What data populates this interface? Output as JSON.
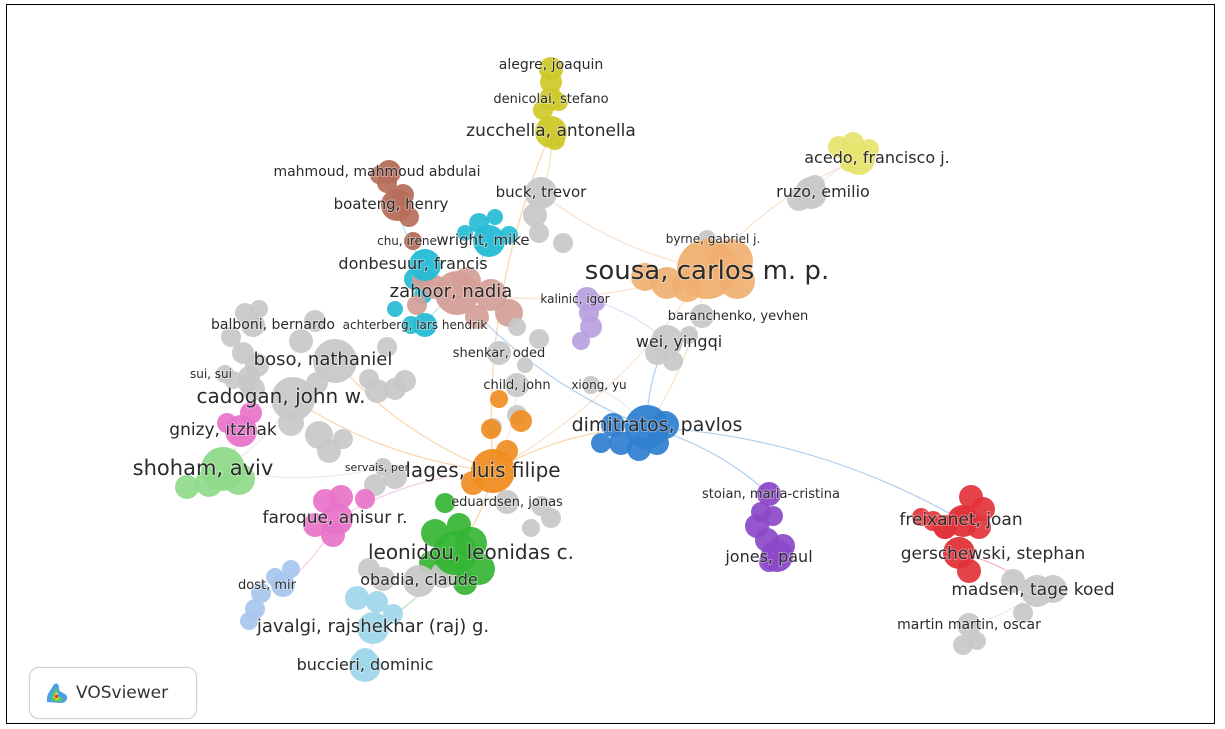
{
  "app": {
    "name": "VOSviewer"
  },
  "colors": {
    "grey": "#c8c8c8",
    "orange": "#f0b070",
    "darkorange": "#ef8d22",
    "yellow": "#cfc92a",
    "paleyellow": "#e7e36f",
    "brown": "#b66e5a",
    "cyan": "#25bcd6",
    "lilac": "#b9a0e0",
    "blue": "#2f7fd0",
    "purple": "#8b49c8",
    "red": "#e2333a",
    "green": "#35b534",
    "lightgreen": "#8fda8a",
    "pink": "#e873c9",
    "salmon": "#f28f8f",
    "rosybrown": "#d49f97",
    "lightblue": "#a7c5ee",
    "skyblue": "#9fd7ea"
  },
  "nodes": [
    {
      "id": "alegre",
      "label": "alegre, joaquin",
      "color": "yellow",
      "size": "small"
    },
    {
      "id": "denicolai",
      "label": "denicolai, stefano",
      "color": "yellow",
      "size": "small"
    },
    {
      "id": "zucchella",
      "label": "zucchella, antonella",
      "color": "yellow",
      "size": "medium"
    },
    {
      "id": "acedo",
      "label": "acedo, francisco j.",
      "color": "paleyellow",
      "size": "medium"
    },
    {
      "id": "ruzo",
      "label": "ruzo, emilio",
      "color": "grey",
      "size": "medium"
    },
    {
      "id": "mahmoud",
      "label": "mahmoud, mahmoud abdulai",
      "color": "brown",
      "size": "small"
    },
    {
      "id": "buck",
      "label": "buck, trevor",
      "color": "grey",
      "size": "medium"
    },
    {
      "id": "boateng",
      "label": "boateng, henry",
      "color": "brown",
      "size": "medium"
    },
    {
      "id": "chu",
      "label": "chu, irene",
      "color": "brown",
      "size": "tiny"
    },
    {
      "id": "wright",
      "label": "wright, mike",
      "color": "cyan",
      "size": "medium"
    },
    {
      "id": "byrne",
      "label": "byrne, gabriel j.",
      "color": "grey",
      "size": "tiny"
    },
    {
      "id": "sousa",
      "label": "sousa, carlos m. p.",
      "color": "orange",
      "size": "huge"
    },
    {
      "id": "donbesuur",
      "label": "donbesuur, francis",
      "color": "cyan",
      "size": "medium"
    },
    {
      "id": "zahoor",
      "label": "zahoor, nadia",
      "color": "rosybrown",
      "size": "large"
    },
    {
      "id": "kalinic",
      "label": "kalinic, igor",
      "color": "lilac",
      "size": "small"
    },
    {
      "id": "balboni",
      "label": "balboni, bernardo",
      "color": "grey",
      "size": "small"
    },
    {
      "id": "achterberg",
      "label": "achterberg, lars hendrik",
      "color": "cyan",
      "size": "small"
    },
    {
      "id": "baranchenko",
      "label": "baranchenko, yevhen",
      "color": "grey",
      "size": "small"
    },
    {
      "id": "wei",
      "label": "wei, yingqi",
      "color": "grey",
      "size": "medium"
    },
    {
      "id": "boso",
      "label": "boso, nathaniel",
      "color": "grey",
      "size": "large"
    },
    {
      "id": "shenkar",
      "label": "shenkar, oded",
      "color": "grey",
      "size": "small"
    },
    {
      "id": "sui",
      "label": "sui, sui",
      "color": "grey",
      "size": "tiny"
    },
    {
      "id": "child",
      "label": "child, john",
      "color": "grey",
      "size": "small"
    },
    {
      "id": "xiong",
      "label": "xiong, yu",
      "color": "grey",
      "size": "tiny"
    },
    {
      "id": "cadogan",
      "label": "cadogan, john w.",
      "color": "grey",
      "size": "large"
    },
    {
      "id": "dimitratos",
      "label": "dimitratos, pavlos",
      "color": "blue",
      "size": "large"
    },
    {
      "id": "gnizy",
      "label": "gnizy, ıtzhak",
      "color": "pink",
      "size": "medium"
    },
    {
      "id": "shoham",
      "label": "shoham, aviv",
      "color": "lightgreen",
      "size": "large"
    },
    {
      "id": "servais",
      "label": "servais, per",
      "color": "grey",
      "size": "tiny"
    },
    {
      "id": "lages",
      "label": "lages, luis filipe",
      "color": "darkorange",
      "size": "large"
    },
    {
      "id": "stoian",
      "label": "stoian, maria-cristina",
      "color": "purple",
      "size": "small"
    },
    {
      "id": "eduardsen",
      "label": "eduardsen, jonas",
      "color": "grey",
      "size": "small"
    },
    {
      "id": "faroque",
      "label": "faroque, anisur r.",
      "color": "pink",
      "size": "medium"
    },
    {
      "id": "freixanet",
      "label": "freixanet, joan",
      "color": "red",
      "size": "medium"
    },
    {
      "id": "leonidou",
      "label": "leonidou, leonidas c.",
      "color": "green",
      "size": "large"
    },
    {
      "id": "gerschewski",
      "label": "gerschewski, stephan",
      "color": "red",
      "size": "medium"
    },
    {
      "id": "jones",
      "label": "jones, paul",
      "color": "purple",
      "size": "medium"
    },
    {
      "id": "dost",
      "label": "dost, mir",
      "color": "lightblue",
      "size": "small"
    },
    {
      "id": "obadia",
      "label": "obadia, claude",
      "color": "grey",
      "size": "medium"
    },
    {
      "id": "madsen",
      "label": "madsen, tage koed",
      "color": "grey",
      "size": "medium"
    },
    {
      "id": "martin",
      "label": "martin martin, oscar",
      "color": "grey",
      "size": "small"
    },
    {
      "id": "javalgi",
      "label": "javalgi, rajshekhar (raj) g.",
      "color": "skyblue",
      "size": "medium"
    },
    {
      "id": "buccieri",
      "label": "buccieri, dominic",
      "color": "skyblue",
      "size": "medium"
    }
  ],
  "edges": [
    [
      "sousa",
      "lages"
    ],
    [
      "sousa",
      "dimitratos"
    ],
    [
      "sousa",
      "acedo"
    ],
    [
      "sousa",
      "buck"
    ],
    [
      "sousa",
      "zahoor"
    ],
    [
      "lages",
      "dimitratos"
    ],
    [
      "lages",
      "leonidou"
    ],
    [
      "lages",
      "cadogan"
    ],
    [
      "lages",
      "boso"
    ],
    [
      "lages",
      "zucchella"
    ],
    [
      "dimitratos",
      "stoian"
    ],
    [
      "dimitratos",
      "freixanet"
    ],
    [
      "dimitratos",
      "wei"
    ],
    [
      "dimitratos",
      "zahoor"
    ],
    [
      "zucchella",
      "alegre"
    ],
    [
      "zucchella",
      "denicolai"
    ],
    [
      "zucchella",
      "buck"
    ],
    [
      "wright",
      "zahoor"
    ],
    [
      "donbesuur",
      "boateng"
    ],
    [
      "boateng",
      "mahmoud"
    ],
    [
      "cadogan",
      "shoham"
    ],
    [
      "cadogan",
      "boso"
    ],
    [
      "leonidou",
      "obadia"
    ],
    [
      "leonidou",
      "javalgi"
    ],
    [
      "javalgi",
      "buccieri"
    ],
    [
      "faroque",
      "dost"
    ],
    [
      "freixanet",
      "gerschewski"
    ],
    [
      "gerschewski",
      "madsen"
    ],
    [
      "madsen",
      "martin"
    ],
    [
      "ruzo",
      "acedo"
    ],
    [
      "kalinic",
      "wei"
    ],
    [
      "child",
      "lages"
    ],
    [
      "xiong",
      "dimitratos"
    ],
    [
      "achterberg",
      "zahoor"
    ],
    [
      "gnizy",
      "shoham"
    ],
    [
      "jones",
      "stoian"
    ],
    [
      "eduardsen",
      "lages"
    ],
    [
      "servais",
      "shoham"
    ],
    [
      "faroque",
      "lages"
    ]
  ]
}
